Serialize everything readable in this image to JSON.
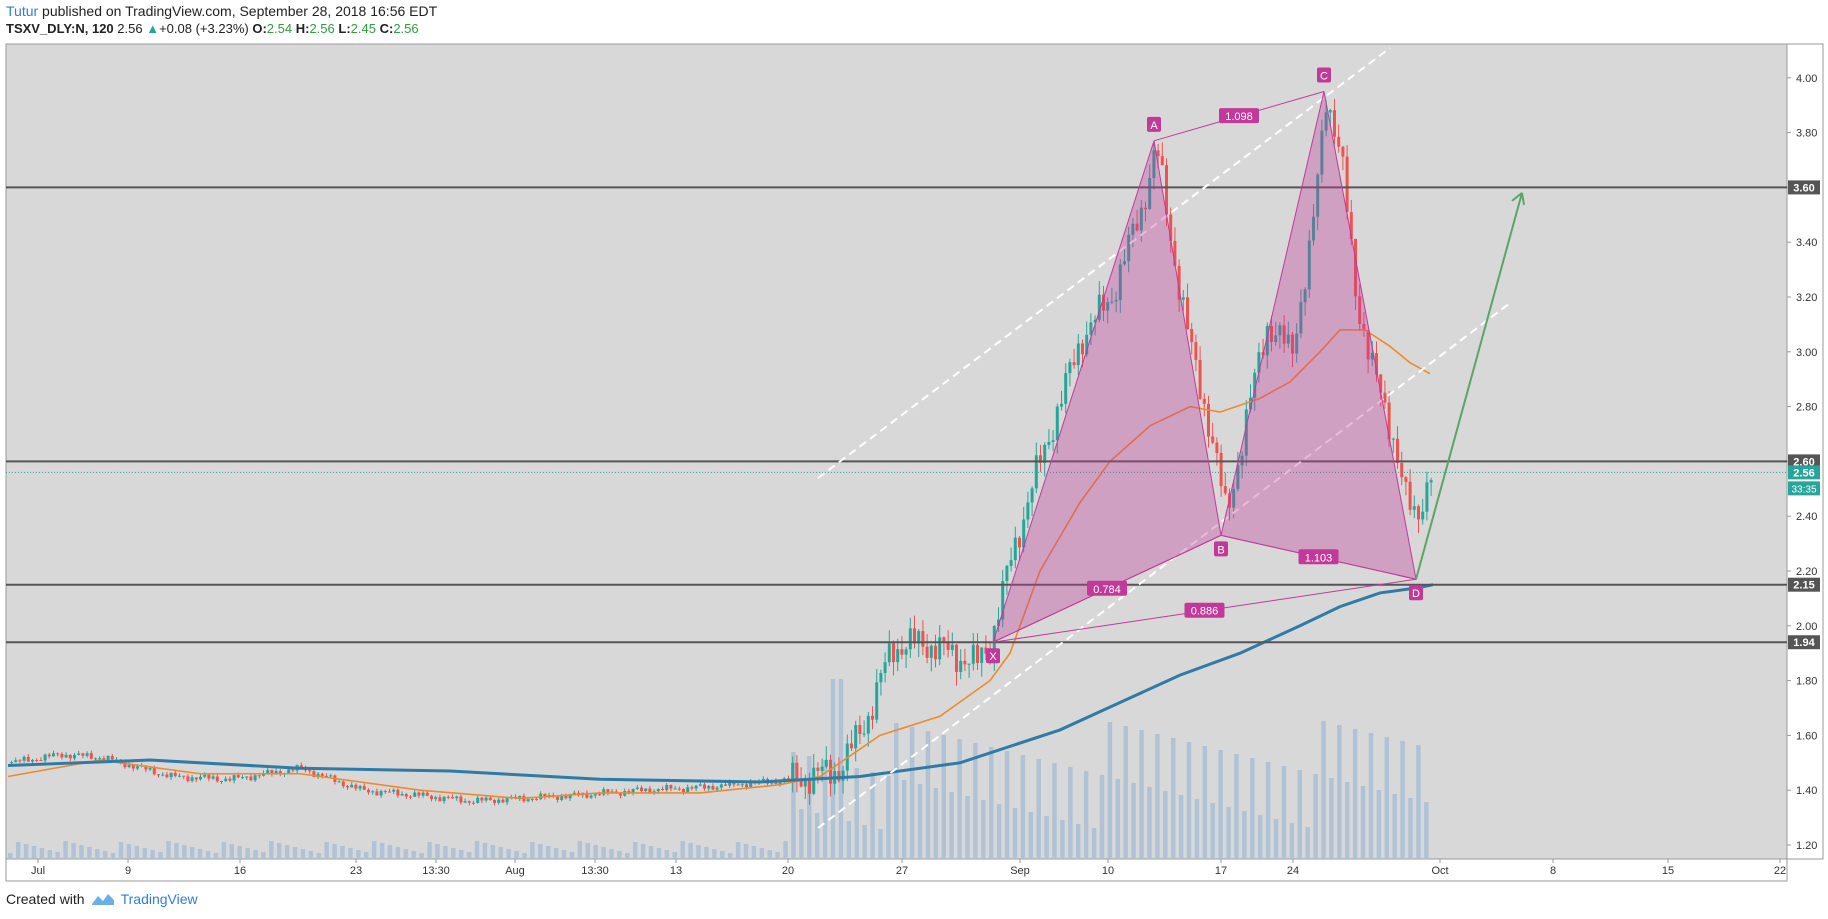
{
  "header": {
    "author": "Tutur",
    "published": "published on TradingView.com, September 28, 2018 16:56 EDT",
    "symbol": "TSXV_DLY:N, 120",
    "last": "2.56",
    "change": "+0.08 (+3.23%)",
    "o_label": "O:",
    "o_val": "2.54",
    "h_label": "H:",
    "h_val": "2.56",
    "l_label": "L:",
    "l_val": "2.45",
    "c_label": "C:",
    "c_val": "2.56"
  },
  "footer": {
    "created": "Created with",
    "brand": "TradingView"
  },
  "colors": {
    "up": "#26a69a",
    "down": "#ef5350",
    "pattern": "#c2399a",
    "ema_short": "#f0892b",
    "ema_long": "#2e7ba6",
    "volume": "#a9c0d6",
    "arrow": "#5aa469",
    "level": "#555555"
  },
  "chart_data": {
    "type": "candlestick",
    "ylim": [
      1.13,
      4.1
    ],
    "y_ticks": [
      "1.20",
      "1.40",
      "1.60",
      "1.80",
      "2.00",
      "2.20",
      "2.40",
      "2.60",
      "2.80",
      "3.00",
      "3.20",
      "3.40",
      "3.60",
      "3.80",
      "4.00"
    ],
    "x_ticks": [
      "Jul",
      "9",
      "16",
      "23",
      "13:30",
      "Aug",
      "13:30",
      "13",
      "20",
      "27",
      "Sep",
      "10",
      "17",
      "24",
      "Oct",
      "8",
      "15",
      "22"
    ],
    "horizontal_levels": [
      {
        "price": 3.6,
        "label": "3.60"
      },
      {
        "price": 2.6,
        "label": "2.60"
      },
      {
        "price": 2.15,
        "label": "2.15"
      },
      {
        "price": 1.94,
        "label": "1.94"
      }
    ],
    "last_price": {
      "price": 2.56,
      "label": "2.56",
      "countdown": "33:35"
    },
    "pattern_points": [
      {
        "label": "X",
        "price": 1.94
      },
      {
        "label": "A",
        "price": 3.77
      },
      {
        "label": "B",
        "price": 2.33
      },
      {
        "label": "C",
        "price": 3.95
      },
      {
        "label": "D",
        "price": 2.17
      }
    ],
    "ratios": [
      "1.098",
      "0.784",
      "1.103",
      "0.886"
    ]
  }
}
